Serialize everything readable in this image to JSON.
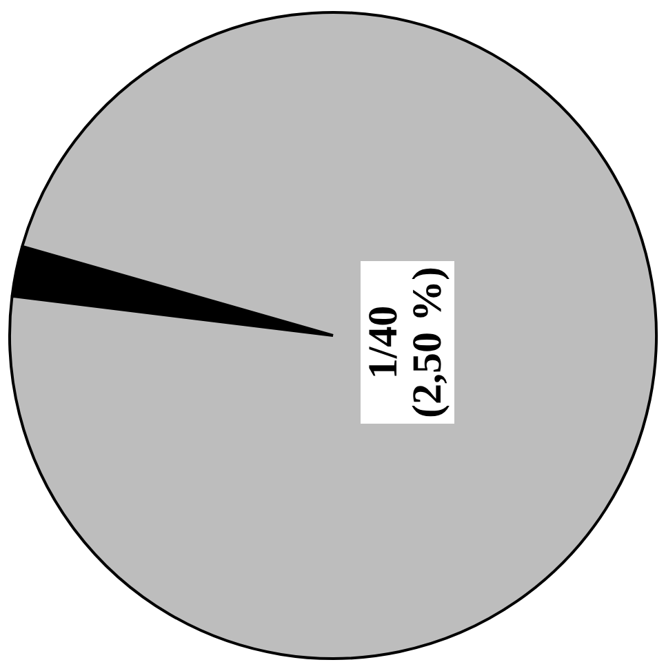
{
  "chart_data": {
    "type": "pie",
    "categories": [
      null,
      null
    ],
    "values": [
      2.5,
      97.5
    ],
    "colors": [
      "#000000",
      "#bdbdbd"
    ],
    "annotations": [
      "1/40\n(2,50 %)"
    ],
    "legend": false
  }
}
